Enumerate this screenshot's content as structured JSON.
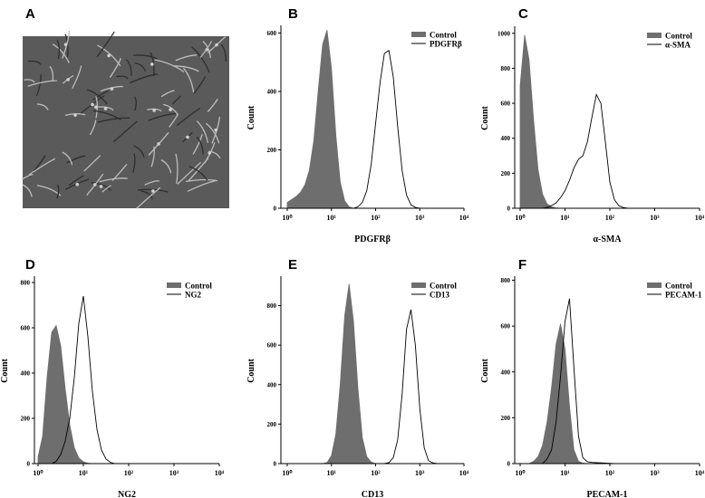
{
  "image_panel": {
    "panel": "A"
  },
  "chart_data": [
    {
      "type": "histogram-overlay",
      "panel": "B",
      "xlabel": "PDGFRβ",
      "ylabel": "Count",
      "log_x": true,
      "xlim": [
        1,
        10000
      ],
      "xticks": [
        {
          "value": 1,
          "label": "10⁰"
        },
        {
          "value": 10,
          "label": "10¹"
        },
        {
          "value": 100,
          "label": "10²"
        },
        {
          "value": 1000,
          "label": "10³"
        },
        {
          "value": 10000,
          "label": "10⁴"
        }
      ],
      "ylim": [
        0,
        620
      ],
      "yticks": [
        0,
        200,
        400,
        600
      ],
      "x": [
        1,
        1.26,
        1.58,
        2,
        2.51,
        3.16,
        3.98,
        5.01,
        6.31,
        7.94,
        10,
        12.6,
        15.8,
        20,
        25.1,
        31.6,
        39.8,
        50.1,
        63.1,
        79.4,
        100,
        126,
        158,
        200,
        251,
        316,
        398,
        501,
        631,
        794,
        1000,
        1260,
        1580,
        2000,
        2510,
        3160,
        3980,
        5010,
        6310,
        7940,
        10000
      ],
      "series": [
        {
          "name": "Control",
          "color": "#6e6e6e",
          "filled": true,
          "values": [
            20,
            30,
            40,
            55,
            80,
            130,
            230,
            400,
            560,
            610,
            480,
            250,
            90,
            25,
            5,
            0,
            0,
            0,
            0,
            0,
            0,
            0,
            0,
            0,
            0,
            0,
            0,
            0,
            0,
            0,
            0,
            0,
            0,
            0,
            0,
            0,
            0,
            0,
            0,
            0,
            0
          ]
        },
        {
          "name": "PDGFRβ",
          "color": "#000000",
          "filled": false,
          "values": [
            0,
            0,
            0,
            0,
            0,
            0,
            0,
            0,
            0,
            0,
            0,
            0,
            0,
            0,
            0,
            0,
            5,
            20,
            60,
            150,
            290,
            430,
            530,
            540,
            450,
            280,
            130,
            45,
            12,
            3,
            0,
            0,
            0,
            0,
            0,
            0,
            0,
            0,
            0,
            0,
            0
          ]
        }
      ]
    },
    {
      "type": "histogram-overlay",
      "panel": "C",
      "xlabel": "α-SMA",
      "ylabel": "Count",
      "log_x": true,
      "xlim": [
        1,
        10000
      ],
      "xticks": [
        {
          "value": 1,
          "label": "10⁰"
        },
        {
          "value": 10,
          "label": "10¹"
        },
        {
          "value": 100,
          "label": "10²"
        },
        {
          "value": 1000,
          "label": "10³"
        },
        {
          "value": 10000,
          "label": "10⁴"
        }
      ],
      "ylim": [
        0,
        1030
      ],
      "yticks": [
        0,
        200,
        400,
        600,
        800,
        1000
      ],
      "x": [
        1,
        1.26,
        1.58,
        2,
        2.51,
        3.16,
        3.98,
        5.01,
        6.31,
        7.94,
        10,
        12.6,
        15.8,
        20,
        25.1,
        31.6,
        39.8,
        50.1,
        63.1,
        79.4,
        100,
        126,
        158,
        200,
        251,
        316,
        398,
        501,
        631,
        794,
        1000,
        1260,
        1580,
        2000,
        2510,
        3160,
        3980,
        5010,
        6310,
        7940,
        10000
      ],
      "series": [
        {
          "name": "Control",
          "color": "#6e6e6e",
          "filled": true,
          "values": [
            700,
            990,
            850,
            500,
            220,
            80,
            25,
            8,
            2,
            0,
            0,
            0,
            0,
            0,
            0,
            0,
            0,
            0,
            0,
            0,
            0,
            0,
            0,
            0,
            0,
            0,
            0,
            0,
            0,
            0,
            0,
            0,
            0,
            0,
            0,
            0,
            0,
            0,
            0,
            0,
            0
          ]
        },
        {
          "name": "α-SMA",
          "color": "#000000",
          "filled": false,
          "values": [
            0,
            0,
            0,
            0,
            0,
            0,
            5,
            15,
            30,
            60,
            100,
            160,
            230,
            280,
            300,
            380,
            520,
            650,
            600,
            380,
            150,
            50,
            15,
            4,
            0,
            0,
            0,
            0,
            0,
            0,
            0,
            0,
            0,
            0,
            0,
            0,
            0,
            0,
            0,
            0,
            0
          ]
        }
      ]
    },
    {
      "type": "histogram-overlay",
      "panel": "D",
      "xlabel": "NG2",
      "ylabel": "Count",
      "log_x": true,
      "xlim": [
        1,
        10000
      ],
      "xticks": [
        {
          "value": 1,
          "label": "10⁰"
        },
        {
          "value": 10,
          "label": "10¹"
        },
        {
          "value": 100,
          "label": "10²"
        },
        {
          "value": 1000,
          "label": "10³"
        },
        {
          "value": 10000,
          "label": "10⁴"
        }
      ],
      "ylim": [
        0,
        820
      ],
      "yticks": [
        0,
        200,
        400,
        600,
        800
      ],
      "x": [
        1,
        1.26,
        1.58,
        2,
        2.51,
        3.16,
        3.98,
        5.01,
        6.31,
        7.94,
        10,
        12.6,
        15.8,
        20,
        25.1,
        31.6,
        39.8,
        50.1,
        63.1,
        79.4,
        100,
        126,
        158,
        200,
        251,
        316,
        398,
        501,
        631,
        794,
        1000,
        1260,
        1580,
        2000,
        2510,
        3160,
        3980,
        5010,
        6310,
        7940,
        10000
      ],
      "series": [
        {
          "name": "Control",
          "color": "#6e6e6e",
          "filled": true,
          "values": [
            30,
            120,
            380,
            580,
            610,
            520,
            330,
            170,
            70,
            25,
            8,
            2,
            0,
            0,
            0,
            0,
            0,
            0,
            0,
            0,
            0,
            0,
            0,
            0,
            0,
            0,
            0,
            0,
            0,
            0,
            0,
            0,
            0,
            0,
            0,
            0,
            0,
            0,
            0,
            0,
            0
          ]
        },
        {
          "name": "NG2",
          "color": "#000000",
          "filled": false,
          "values": [
            0,
            0,
            0,
            0,
            10,
            40,
            100,
            200,
            380,
            620,
            740,
            560,
            320,
            150,
            60,
            20,
            5,
            0,
            0,
            0,
            0,
            0,
            0,
            0,
            0,
            0,
            0,
            0,
            0,
            0,
            0,
            0,
            0,
            0,
            0,
            0,
            0,
            0,
            0,
            0,
            0
          ]
        }
      ]
    },
    {
      "type": "histogram-overlay",
      "panel": "E",
      "xlabel": "CD13",
      "ylabel": "Count",
      "log_x": true,
      "xlim": [
        1,
        10000
      ],
      "xticks": [
        {
          "value": 1,
          "label": "10⁰"
        },
        {
          "value": 10,
          "label": "10¹"
        },
        {
          "value": 100,
          "label": "10²"
        },
        {
          "value": 1000,
          "label": "10³"
        },
        {
          "value": 10000,
          "label": "10⁴"
        }
      ],
      "ylim": [
        0,
        940
      ],
      "yticks": [
        0,
        200,
        400,
        600,
        800
      ],
      "x": [
        1,
        1.26,
        1.58,
        2,
        2.51,
        3.16,
        3.98,
        5.01,
        6.31,
        7.94,
        10,
        12.6,
        15.8,
        20,
        25.1,
        31.6,
        39.8,
        50.1,
        63.1,
        79.4,
        100,
        126,
        158,
        200,
        251,
        316,
        398,
        501,
        631,
        794,
        1000,
        1260,
        1580,
        2000,
        2510,
        3160,
        3980,
        5010,
        6310,
        7940,
        10000
      ],
      "series": [
        {
          "name": "Control",
          "color": "#6e6e6e",
          "filled": true,
          "values": [
            0,
            0,
            0,
            0,
            0,
            0,
            0,
            0,
            0,
            5,
            40,
            150,
            400,
            750,
            910,
            720,
            380,
            130,
            35,
            8,
            0,
            0,
            0,
            0,
            0,
            0,
            0,
            0,
            0,
            0,
            0,
            0,
            0,
            0,
            0,
            0,
            0,
            0,
            0,
            0,
            0
          ]
        },
        {
          "name": "CD13",
          "color": "#000000",
          "filled": false,
          "values": [
            0,
            0,
            0,
            0,
            0,
            0,
            0,
            0,
            0,
            0,
            0,
            0,
            0,
            0,
            0,
            0,
            0,
            0,
            0,
            0,
            0,
            0,
            0,
            5,
            30,
            120,
            350,
            680,
            780,
            600,
            280,
            80,
            15,
            3,
            0,
            0,
            0,
            0,
            0,
            0,
            0
          ]
        }
      ]
    },
    {
      "type": "histogram-overlay",
      "panel": "F",
      "xlabel": "PECAM-1",
      "ylabel": "Count",
      "log_x": true,
      "xlim": [
        1,
        10000
      ],
      "xticks": [
        {
          "value": 1,
          "label": "10⁰"
        },
        {
          "value": 10,
          "label": "10¹"
        },
        {
          "value": 100,
          "label": "10²"
        },
        {
          "value": 1000,
          "label": "10³"
        },
        {
          "value": 10000,
          "label": "10⁴"
        }
      ],
      "ylim": [
        0,
        810
      ],
      "yticks": [
        0,
        200,
        400,
        600,
        800
      ],
      "x": [
        1,
        1.26,
        1.58,
        2,
        2.51,
        3.16,
        3.98,
        5.01,
        6.31,
        7.94,
        10,
        12.6,
        15.8,
        20,
        25.1,
        31.6,
        39.8,
        50.1,
        63.1,
        79.4,
        100,
        126,
        158,
        200,
        251,
        316,
        398,
        501,
        631,
        794,
        1000,
        1260,
        1580,
        2000,
        2510,
        3160,
        3980,
        5010,
        6310,
        7940,
        10000
      ],
      "series": [
        {
          "name": "Control",
          "color": "#6e6e6e",
          "filled": true,
          "values": [
            0,
            0,
            0,
            10,
            30,
            80,
            180,
            330,
            520,
            610,
            500,
            250,
            60,
            10,
            2,
            0,
            0,
            0,
            0,
            0,
            0,
            0,
            0,
            0,
            0,
            0,
            0,
            0,
            0,
            0,
            0,
            0,
            0,
            0,
            0,
            0,
            0,
            0,
            0,
            0,
            0
          ]
        },
        {
          "name": "PECAM-1",
          "color": "#000000",
          "filled": false,
          "values": [
            0,
            0,
            0,
            0,
            0,
            0,
            20,
            60,
            180,
            380,
            620,
            720,
            420,
            120,
            25,
            8,
            5,
            4,
            3,
            2,
            1,
            0,
            0,
            0,
            0,
            0,
            0,
            0,
            0,
            0,
            0,
            0,
            0,
            0,
            0,
            0,
            0,
            0,
            0,
            0,
            0
          ]
        }
      ]
    }
  ]
}
